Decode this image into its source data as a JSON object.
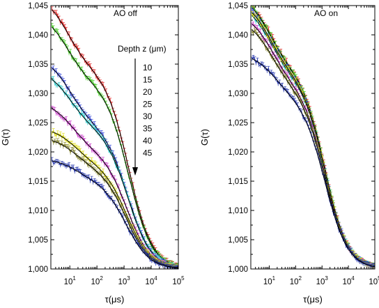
{
  "chart_data": [
    {
      "type": "line",
      "title": "AO off",
      "xlabel": "τ(μs)",
      "ylabel": "G(τ)",
      "x_scale": "log",
      "xlim": [
        2,
        100000
      ],
      "ylim": [
        1.0,
        1.045
      ],
      "x_ticks": [
        10,
        100,
        1000,
        10000,
        100000
      ],
      "x_tick_labels": [
        {
          "base": "10",
          "exp": "1"
        },
        {
          "base": "10",
          "exp": "2"
        },
        {
          "base": "10",
          "exp": "3"
        },
        {
          "base": "10",
          "exp": "4"
        },
        {
          "base": "10",
          "exp": "5"
        }
      ],
      "y_ticks": [
        1.0,
        1.005,
        1.01,
        1.015,
        1.02,
        1.025,
        1.03,
        1.035,
        1.04,
        1.045
      ],
      "y_tick_labels": [
        "1,000",
        "1,005",
        "1,010",
        "1,015",
        "1,020",
        "1,025",
        "1,030",
        "1,035",
        "1,040",
        "1,045"
      ],
      "legend": {
        "title": "Depth z (μm)",
        "entries": [
          "10",
          "15",
          "20",
          "25",
          "30",
          "35",
          "40",
          "45"
        ]
      },
      "series": [
        {
          "depth": 10,
          "color": "#dd2222",
          "amp": 0.0445,
          "frac": 0.3,
          "tau_fast": 8,
          "tau_slow": 1500
        },
        {
          "depth": 15,
          "color": "#44cc22",
          "amp": 0.0415,
          "frac": 0.3,
          "tau_fast": 8,
          "tau_slow": 1500
        },
        {
          "depth": 20,
          "color": "#4455dd",
          "amp": 0.0345,
          "frac": 0.35,
          "tau_fast": 10,
          "tau_slow": 1400
        },
        {
          "depth": 25,
          "color": "#33cccc",
          "amp": 0.0325,
          "frac": 0.32,
          "tau_fast": 10,
          "tau_slow": 1400
        },
        {
          "depth": 30,
          "color": "#cc44cc",
          "amp": 0.0275,
          "frac": 0.32,
          "tau_fast": 12,
          "tau_slow": 1300
        },
        {
          "depth": 35,
          "color": "#dddd22",
          "amp": 0.0235,
          "frac": 0.28,
          "tau_fast": 15,
          "tau_slow": 1300
        },
        {
          "depth": 40,
          "color": "#888833",
          "amp": 0.022,
          "frac": 0.26,
          "tau_fast": 15,
          "tau_slow": 1200
        },
        {
          "depth": 45,
          "color": "#2233aa",
          "amp": 0.0185,
          "frac": 0.22,
          "tau_fast": 18,
          "tau_slow": 1200
        }
      ]
    },
    {
      "type": "line",
      "title": "AO on",
      "xlabel": "τ(μs)",
      "ylabel": "G(τ)",
      "x_scale": "log",
      "xlim": [
        2,
        100000
      ],
      "ylim": [
        1.0,
        1.045
      ],
      "x_ticks": [
        10,
        100,
        1000,
        10000,
        100000
      ],
      "x_tick_labels": [
        {
          "base": "10",
          "exp": "1"
        },
        {
          "base": "10",
          "exp": "2"
        },
        {
          "base": "10",
          "exp": "3"
        },
        {
          "base": "10",
          "exp": "4"
        },
        {
          "base": "10",
          "exp": "5"
        }
      ],
      "y_ticks": [
        1.0,
        1.005,
        1.01,
        1.015,
        1.02,
        1.025,
        1.03,
        1.035,
        1.04,
        1.045
      ],
      "y_tick_labels": [
        "1,000",
        "1,005",
        "1,010",
        "1,015",
        "1,020",
        "1,025",
        "1,030",
        "1,035",
        "1,040",
        "1,045"
      ],
      "series": [
        {
          "depth": 10,
          "color": "#dd2222",
          "amp": 0.045,
          "frac": 0.3,
          "tau_fast": 10,
          "tau_slow": 1300
        },
        {
          "depth": 15,
          "color": "#44cc22",
          "amp": 0.0448,
          "frac": 0.3,
          "tau_fast": 10,
          "tau_slow": 1300
        },
        {
          "depth": 20,
          "color": "#4455dd",
          "amp": 0.044,
          "frac": 0.3,
          "tau_fast": 10,
          "tau_slow": 1300
        },
        {
          "depth": 25,
          "color": "#33cccc",
          "amp": 0.0435,
          "frac": 0.3,
          "tau_fast": 10,
          "tau_slow": 1300
        },
        {
          "depth": 30,
          "color": "#cc44cc",
          "amp": 0.042,
          "frac": 0.3,
          "tau_fast": 12,
          "tau_slow": 1300
        },
        {
          "depth": 35,
          "color": "#dddd22",
          "amp": 0.044,
          "frac": 0.3,
          "tau_fast": 10,
          "tau_slow": 1300
        },
        {
          "depth": 40,
          "color": "#888833",
          "amp": 0.041,
          "frac": 0.3,
          "tau_fast": 12,
          "tau_slow": 1300
        },
        {
          "depth": 45,
          "color": "#2233aa",
          "amp": 0.036,
          "frac": 0.22,
          "tau_fast": 15,
          "tau_slow": 1300
        }
      ]
    }
  ]
}
